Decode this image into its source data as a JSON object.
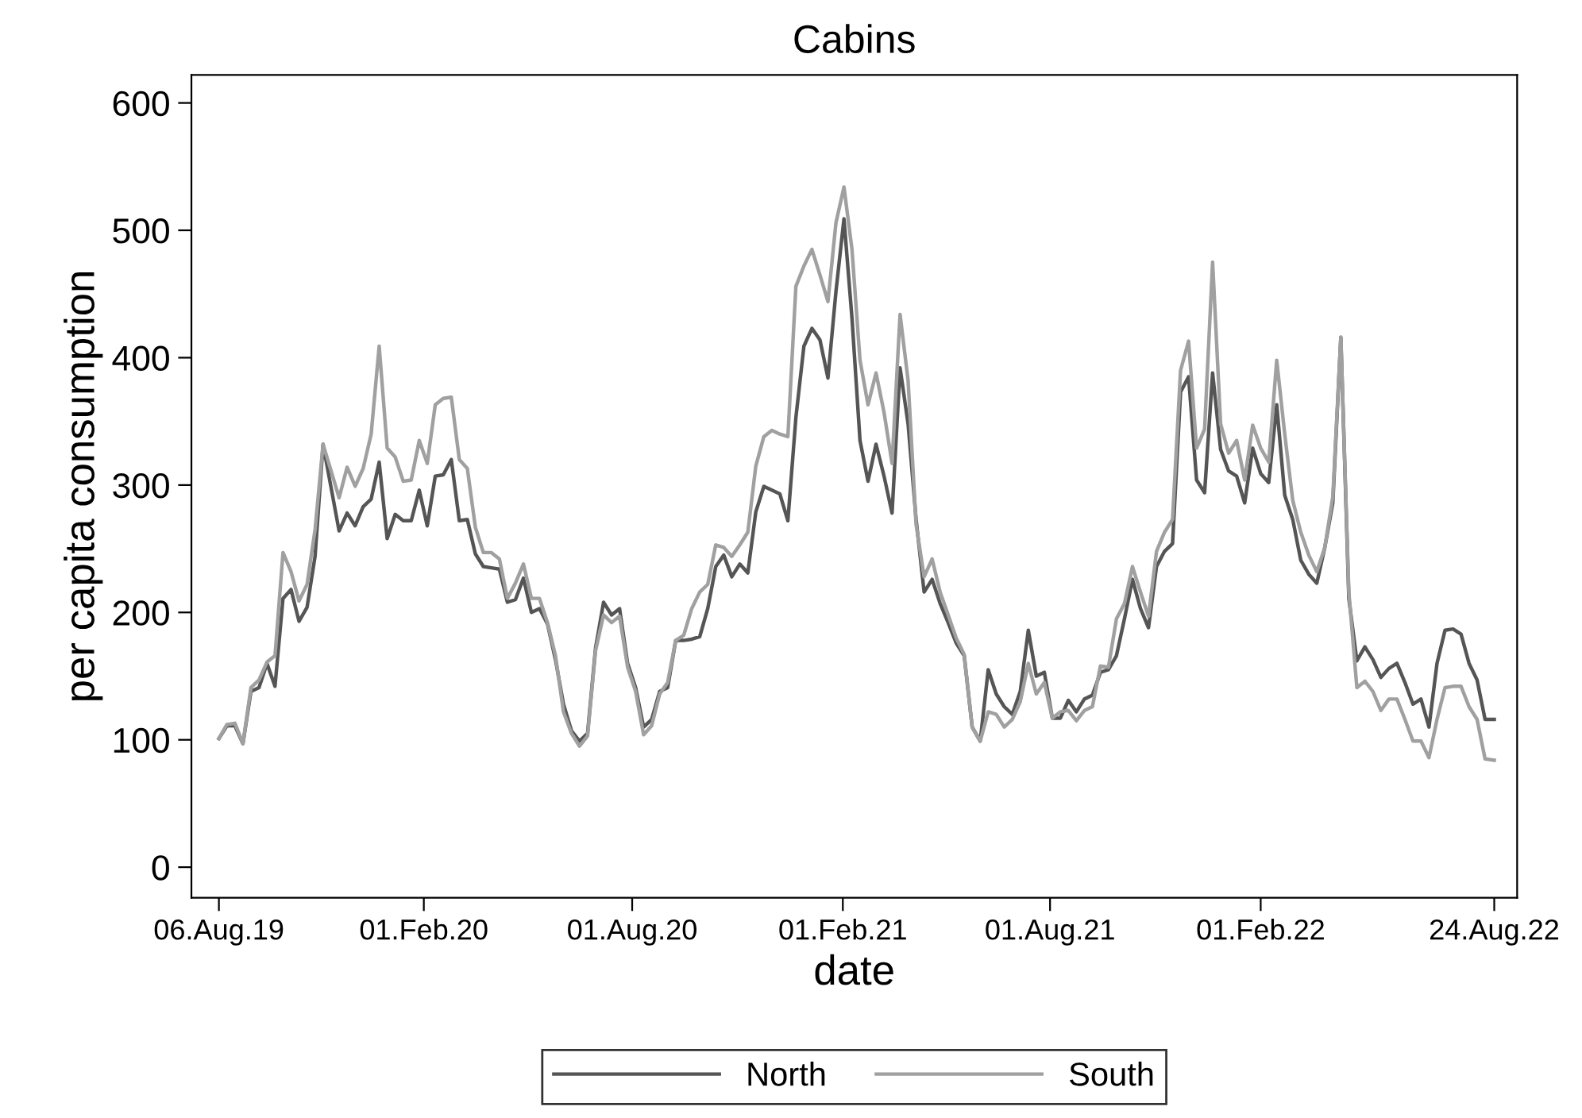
{
  "chart_data": {
    "type": "line",
    "title": "Cabins",
    "xlabel": "date",
    "ylabel": "per capita consumption",
    "x": [
      "2019-08-06",
      "2019-08-13",
      "2019-08-20",
      "2019-08-27",
      "2019-09-03",
      "2019-09-10",
      "2019-09-17",
      "2019-09-24",
      "2019-10-01",
      "2019-10-08",
      "2019-10-15",
      "2019-10-22",
      "2019-10-29",
      "2019-11-05",
      "2019-11-12",
      "2019-11-19",
      "2019-11-26",
      "2019-12-03",
      "2019-12-10",
      "2019-12-17",
      "2019-12-24",
      "2019-12-31",
      "2020-01-07",
      "2020-01-14",
      "2020-01-21",
      "2020-01-28",
      "2020-02-04",
      "2020-02-11",
      "2020-02-18",
      "2020-02-25",
      "2020-03-03",
      "2020-03-10",
      "2020-03-17",
      "2020-03-24",
      "2020-03-31",
      "2020-04-07",
      "2020-04-14",
      "2020-04-21",
      "2020-04-28",
      "2020-05-05",
      "2020-05-12",
      "2020-05-19",
      "2020-05-26",
      "2020-06-02",
      "2020-06-09",
      "2020-06-16",
      "2020-06-23",
      "2020-06-30",
      "2020-07-07",
      "2020-07-14",
      "2020-07-21",
      "2020-07-28",
      "2020-08-04",
      "2020-08-11",
      "2020-08-18",
      "2020-08-25",
      "2020-09-01",
      "2020-09-08",
      "2020-09-15",
      "2020-09-22",
      "2020-09-29",
      "2020-10-06",
      "2020-10-13",
      "2020-10-20",
      "2020-10-27",
      "2020-11-03",
      "2020-11-10",
      "2020-11-17",
      "2020-11-24",
      "2020-12-01",
      "2020-12-08",
      "2020-12-15",
      "2020-12-22",
      "2020-12-29",
      "2021-01-05",
      "2021-01-12",
      "2021-01-19",
      "2021-01-26",
      "2021-02-02",
      "2021-02-09",
      "2021-02-16",
      "2021-02-23",
      "2021-03-02",
      "2021-03-09",
      "2021-03-16",
      "2021-03-23",
      "2021-03-30",
      "2021-04-06",
      "2021-04-13",
      "2021-04-20",
      "2021-04-27",
      "2021-05-04",
      "2021-05-11",
      "2021-05-18",
      "2021-05-25",
      "2021-06-01",
      "2021-06-08",
      "2021-06-15",
      "2021-06-22",
      "2021-06-29",
      "2021-07-06",
      "2021-07-13",
      "2021-07-20",
      "2021-07-27",
      "2021-08-03",
      "2021-08-10",
      "2021-08-17",
      "2021-08-24",
      "2021-08-31",
      "2021-09-07",
      "2021-09-14",
      "2021-09-21",
      "2021-09-28",
      "2021-10-05",
      "2021-10-12",
      "2021-10-19",
      "2021-10-26",
      "2021-11-02",
      "2021-11-09",
      "2021-11-16",
      "2021-11-23",
      "2021-11-30",
      "2021-12-07",
      "2021-12-14",
      "2021-12-21",
      "2021-12-28",
      "2022-01-04",
      "2022-01-11",
      "2022-01-18",
      "2022-01-25",
      "2022-02-01",
      "2022-02-08",
      "2022-02-15",
      "2022-02-22",
      "2022-03-01",
      "2022-03-08",
      "2022-03-15",
      "2022-03-22",
      "2022-03-29",
      "2022-04-05",
      "2022-04-12",
      "2022-04-19",
      "2022-04-26",
      "2022-05-03",
      "2022-05-10",
      "2022-05-17",
      "2022-05-24",
      "2022-05-31",
      "2022-06-07",
      "2022-06-14",
      "2022-06-21",
      "2022-06-28",
      "2022-07-05",
      "2022-07-12",
      "2022-07-19",
      "2022-07-26",
      "2022-08-02",
      "2022-08-09",
      "2022-08-16",
      "2022-08-24"
    ],
    "series": [
      {
        "name": "North",
        "color": "#555555",
        "values": [
          101,
          111,
          111,
          97,
          138,
          141,
          160,
          142,
          211,
          218,
          193,
          204,
          244,
          332,
          298,
          264,
          278,
          268,
          283,
          289,
          318,
          258,
          277,
          272,
          272,
          296,
          268,
          307,
          308,
          320,
          272,
          273,
          246,
          236,
          235,
          234,
          208,
          210,
          227,
          200,
          203,
          191,
          163,
          128,
          107,
          99,
          105,
          172,
          208,
          198,
          203,
          160,
          141,
          110,
          116,
          138,
          141,
          178,
          178,
          179,
          181,
          203,
          236,
          245,
          228,
          238,
          231,
          279,
          299,
          296,
          293,
          272,
          353,
          409,
          423,
          414,
          384,
          452,
          509,
          431,
          335,
          303,
          332,
          307,
          278,
          392,
          348,
          273,
          216,
          226,
          207,
          192,
          176,
          166,
          110,
          99,
          155,
          136,
          126,
          120,
          138,
          186,
          150,
          153,
          117,
          117,
          131,
          122,
          132,
          135,
          153,
          155,
          166,
          195,
          226,
          203,
          188,
          236,
          248,
          254,
          373,
          385,
          304,
          294,
          388,
          328,
          311,
          307,
          286,
          329,
          309,
          302,
          363,
          292,
          273,
          241,
          230,
          223,
          251,
          286,
          416,
          211,
          162,
          173,
          163,
          149,
          156,
          160,
          145,
          128,
          132,
          110,
          160,
          186,
          187,
          183,
          160,
          147,
          116,
          116
        ]
      },
      {
        "name": "South",
        "color": "#a0a0a0",
        "values": [
          101,
          112,
          113,
          97,
          141,
          147,
          161,
          166,
          247,
          232,
          209,
          222,
          265,
          332,
          311,
          290,
          314,
          299,
          313,
          340,
          409,
          329,
          322,
          303,
          304,
          335,
          317,
          363,
          368,
          369,
          320,
          313,
          267,
          247,
          247,
          242,
          211,
          223,
          238,
          211,
          211,
          192,
          166,
          122,
          105,
          95,
          103,
          170,
          198,
          192,
          197,
          157,
          138,
          104,
          111,
          136,
          145,
          178,
          182,
          203,
          216,
          222,
          253,
          251,
          244,
          253,
          263,
          315,
          338,
          343,
          340,
          338,
          456,
          472,
          485,
          465,
          444,
          506,
          534,
          485,
          398,
          363,
          388,
          357,
          317,
          434,
          382,
          269,
          228,
          242,
          216,
          198,
          180,
          167,
          110,
          99,
          122,
          120,
          110,
          116,
          130,
          160,
          136,
          145,
          117,
          122,
          123,
          115,
          123,
          126,
          158,
          157,
          195,
          207,
          236,
          216,
          197,
          248,
          263,
          273,
          390,
          413,
          329,
          344,
          475,
          348,
          325,
          335,
          304,
          347,
          329,
          318,
          398,
          340,
          288,
          263,
          245,
          232,
          251,
          291,
          416,
          216,
          141,
          146,
          138,
          123,
          132,
          132,
          116,
          99,
          99,
          86,
          116,
          141,
          142,
          142,
          126,
          116,
          85,
          84
        ]
      }
    ],
    "xlim": [
      "2019-07-13",
      "2022-09-13"
    ],
    "xticks": [
      {
        "value": "2019-08-06",
        "label": "06.Aug.19"
      },
      {
        "value": "2020-02-01",
        "label": "01.Feb.20"
      },
      {
        "value": "2020-08-01",
        "label": "01.Aug.20"
      },
      {
        "value": "2021-02-01",
        "label": "01.Feb.21"
      },
      {
        "value": "2021-08-01",
        "label": "01.Aug.21"
      },
      {
        "value": "2022-02-01",
        "label": "01.Feb.22"
      },
      {
        "value": "2022-08-24",
        "label": "24.Aug.22"
      }
    ],
    "ylim": [
      -24,
      622
    ],
    "yticks": [
      0,
      100,
      200,
      300,
      400,
      500,
      600
    ],
    "grid": false,
    "legend": "bottom",
    "line_style": "solid"
  }
}
